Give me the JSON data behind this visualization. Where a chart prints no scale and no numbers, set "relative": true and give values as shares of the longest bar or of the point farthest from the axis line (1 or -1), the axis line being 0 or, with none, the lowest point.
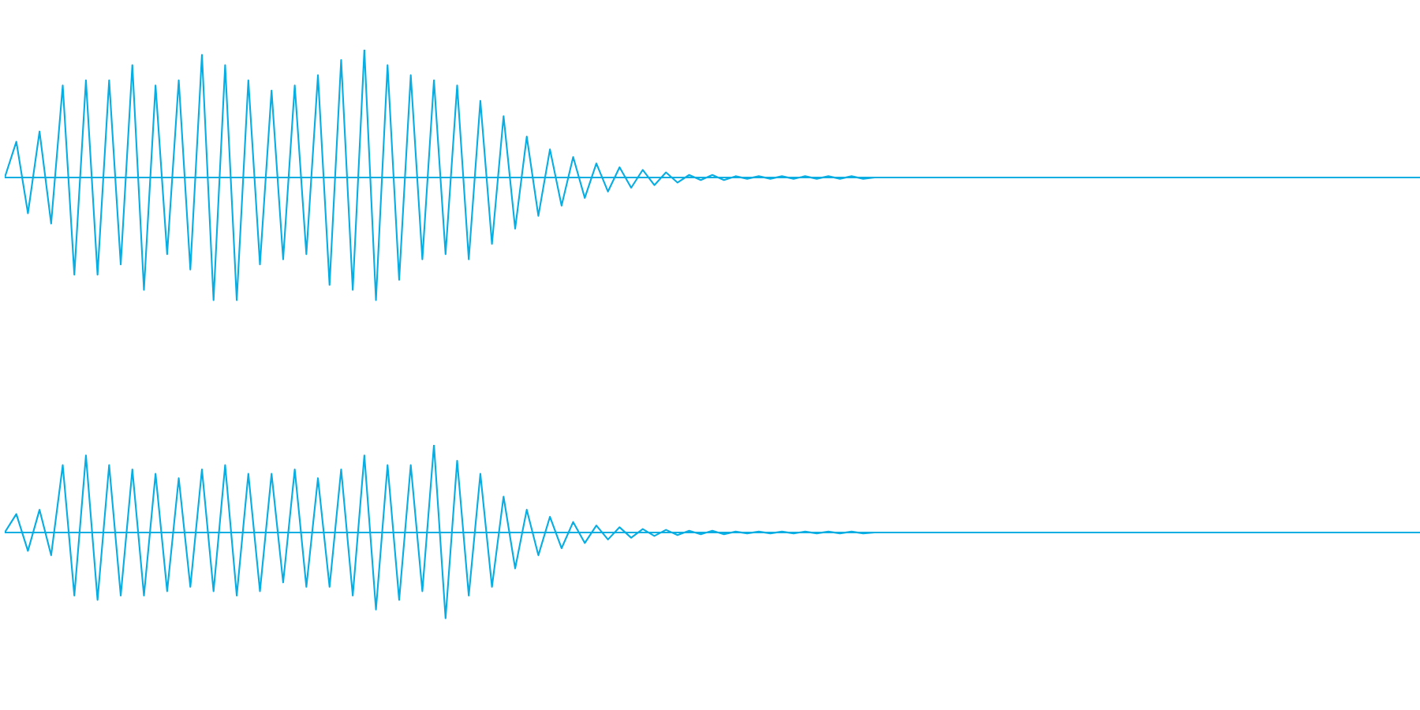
{
  "chart_data": [
    {
      "type": "line",
      "relative": true,
      "categories": [
        null,
        null,
        null,
        null,
        null,
        null,
        null,
        null,
        null,
        null,
        null,
        null,
        null,
        null,
        null,
        null,
        null,
        null,
        null,
        null,
        null,
        null,
        null,
        null,
        null,
        null,
        null,
        null,
        null,
        null,
        null,
        null,
        null,
        null,
        null,
        null,
        null,
        null,
        null,
        null,
        null,
        null,
        null,
        null,
        null,
        null,
        null,
        null,
        null,
        null,
        null,
        null,
        null,
        null,
        null,
        null,
        null,
        null,
        null,
        null,
        null,
        null,
        null,
        null,
        null,
        null,
        null,
        null,
        null,
        null,
        null,
        null,
        null,
        null,
        null,
        null,
        null,
        null,
        null,
        null,
        null,
        null,
        null,
        null,
        null,
        null,
        null,
        null,
        null,
        null,
        null,
        null,
        null,
        null,
        null,
        null,
        null,
        null,
        null,
        null,
        null,
        null,
        null,
        null,
        null,
        null,
        null,
        null,
        null,
        null,
        null,
        null,
        null,
        null,
        null,
        null,
        null,
        null,
        null,
        null,
        null,
        null,
        null
      ],
      "series": [
        {
          "color": "#08ade2",
          "values": [
            0,
            0.28,
            -0.28,
            0.36,
            -0.36,
            0.72,
            -0.76,
            0.76,
            -0.76,
            0.76,
            -0.68,
            0.88,
            -0.88,
            0.72,
            -0.6,
            0.76,
            -0.72,
            0.96,
            -0.96,
            0.88,
            -0.96,
            0.76,
            -0.68,
            0.68,
            -0.64,
            0.72,
            -0.6,
            0.8,
            -0.84,
            0.92,
            -0.88,
            1,
            -0.96,
            0.88,
            -0.8,
            0.8,
            -0.64,
            0.76,
            -0.6,
            0.72,
            -0.64,
            0.6,
            -0.52,
            0.48,
            -0.4,
            0.32,
            -0.3,
            0.22,
            -0.22,
            0.16,
            -0.16,
            0.11,
            -0.11,
            0.08,
            -0.08,
            0.06,
            -0.06,
            0.04,
            -0.04,
            0.02,
            -0.02,
            0.02,
            -0.02,
            0.01,
            -0.01,
            0.01,
            -0.01,
            0.01,
            -0.01,
            0.01,
            -0.01,
            0.01,
            -0.01,
            0.01,
            -0.01,
            0,
            0,
            0,
            0,
            0,
            0,
            0,
            0,
            0,
            0,
            0,
            0,
            0,
            0,
            0,
            0,
            0,
            0,
            0,
            0,
            0,
            0,
            0,
            0,
            0,
            0,
            0,
            0,
            0,
            0,
            0,
            0,
            0,
            0,
            0,
            0,
            0,
            0,
            0,
            0,
            0,
            0,
            0,
            0,
            0,
            0,
            0,
            0
          ]
        }
      ]
    },
    {
      "type": "line",
      "relative": true,
      "categories": [
        null,
        null,
        null,
        null,
        null,
        null,
        null,
        null,
        null,
        null,
        null,
        null,
        null,
        null,
        null,
        null,
        null,
        null,
        null,
        null,
        null,
        null,
        null,
        null,
        null,
        null,
        null,
        null,
        null,
        null,
        null,
        null,
        null,
        null,
        null,
        null,
        null,
        null,
        null,
        null,
        null,
        null,
        null,
        null,
        null,
        null,
        null,
        null,
        null,
        null,
        null,
        null,
        null,
        null,
        null,
        null,
        null,
        null,
        null,
        null,
        null,
        null,
        null,
        null,
        null,
        null,
        null,
        null,
        null,
        null,
        null,
        null,
        null,
        null,
        null,
        null,
        null,
        null,
        null,
        null,
        null,
        null,
        null,
        null,
        null,
        null,
        null,
        null,
        null,
        null,
        null,
        null,
        null,
        null,
        null,
        null,
        null,
        null,
        null,
        null,
        null,
        null,
        null,
        null,
        null,
        null,
        null,
        null,
        null,
        null,
        null,
        null,
        null,
        null,
        null,
        null,
        null,
        null,
        null,
        null,
        null,
        null,
        null
      ],
      "series": [
        {
          "color": "#08ade2",
          "values": [
            0,
            0.21,
            -0.21,
            0.26,
            -0.26,
            0.77,
            -0.72,
            0.88,
            -0.77,
            0.77,
            -0.72,
            0.72,
            -0.72,
            0.67,
            -0.67,
            0.62,
            -0.62,
            0.72,
            -0.67,
            0.77,
            -0.72,
            0.67,
            -0.67,
            0.67,
            -0.57,
            0.72,
            -0.62,
            0.62,
            -0.62,
            0.72,
            -0.72,
            0.88,
            -0.88,
            0.77,
            -0.77,
            0.77,
            -0.67,
            1,
            -0.98,
            0.82,
            -0.72,
            0.67,
            -0.62,
            0.41,
            -0.41,
            0.26,
            -0.26,
            0.18,
            -0.18,
            0.12,
            -0.12,
            0.08,
            -0.08,
            0.06,
            -0.06,
            0.04,
            -0.04,
            0.03,
            -0.03,
            0.02,
            -0.02,
            0.02,
            -0.02,
            0.01,
            -0.01,
            0.01,
            -0.01,
            0.01,
            -0.01,
            0.01,
            -0.01,
            0.01,
            -0.01,
            0.01,
            -0.01,
            0,
            0,
            0,
            0,
            0,
            0,
            0,
            0,
            0,
            0,
            0,
            0,
            0,
            0,
            0,
            0,
            0,
            0,
            0,
            0,
            0,
            0,
            0,
            0,
            0,
            0,
            0,
            0,
            0,
            0,
            0,
            0,
            0,
            0,
            0,
            0,
            0,
            0,
            0,
            0,
            0,
            0,
            0,
            0,
            0,
            0,
            0,
            0
          ]
        }
      ]
    }
  ]
}
